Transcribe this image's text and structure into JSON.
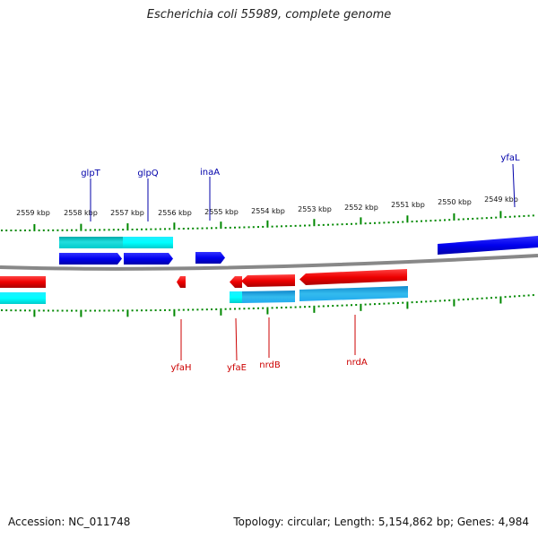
{
  "title": "Escherichia coli 55989, complete genome",
  "footer": {
    "accession": "Accession: NC_011748",
    "summary": "Topology: circular; Length: 5,154,862 bp; Genes: 4,984"
  },
  "scale_labels": [
    "2559 kbp",
    "2558 kbp",
    "2557 kbp",
    "2556 kbp",
    "2555 kbp",
    "2554 kbp",
    "2553 kbp",
    "2552 kbp",
    "2551 kbp",
    "2550 kbp",
    "2549 kbp"
  ],
  "genes_top": [
    "glpT",
    "glpQ",
    "inaA",
    "yfaL"
  ],
  "genes_bottom": [
    "yfaH",
    "yfaE",
    "nrdB",
    "nrdA"
  ],
  "colors": {
    "forward_gene": "#0000ee",
    "reverse_gene": "#ee0000",
    "forward_cds": "#00cccc",
    "reverse_cds": "#22aaee",
    "tick": "#008800",
    "backbone": "#888888",
    "top_label": "#0000aa",
    "bottom_label": "#cc0000"
  }
}
